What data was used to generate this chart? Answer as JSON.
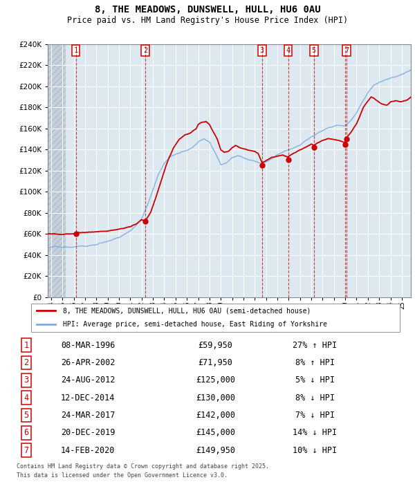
{
  "title_line1": "8, THE MEADOWS, DUNSWELL, HULL, HU6 0AU",
  "title_line2": "Price paid vs. HM Land Registry's House Price Index (HPI)",
  "ylim": [
    0,
    240000
  ],
  "xlim_start": 1993.7,
  "xlim_end": 2025.8,
  "plot_bg_color": "#dde8f0",
  "hatch_color": "#c5d0dc",
  "grid_color": "#ffffff",
  "sale_color": "#cc0000",
  "hpi_color": "#7aade0",
  "sale_label": "8, THE MEADOWS, DUNSWELL, HULL, HU6 0AU (semi-detached house)",
  "hpi_label": "HPI: Average price, semi-detached house, East Riding of Yorkshire",
  "show_in_chart": [
    1,
    2,
    3,
    4,
    5,
    7
  ],
  "transactions": [
    {
      "num": 1,
      "date": "08-MAR-1996",
      "year": 1996.19,
      "price": 59950,
      "pct": "27% ↑ HPI"
    },
    {
      "num": 2,
      "date": "26-APR-2002",
      "year": 2002.32,
      "price": 71950,
      "pct": "8% ↑ HPI"
    },
    {
      "num": 3,
      "date": "24-AUG-2012",
      "year": 2012.65,
      "price": 125000,
      "pct": "5% ↓ HPI"
    },
    {
      "num": 4,
      "date": "12-DEC-2014",
      "year": 2014.95,
      "price": 130000,
      "pct": "8% ↓ HPI"
    },
    {
      "num": 5,
      "date": "24-MAR-2017",
      "year": 2017.23,
      "price": 142000,
      "pct": "7% ↓ HPI"
    },
    {
      "num": 6,
      "date": "20-DEC-2019",
      "year": 2019.97,
      "price": 145000,
      "pct": "14% ↓ HPI"
    },
    {
      "num": 7,
      "date": "14-FEB-2020",
      "year": 2020.12,
      "price": 149950,
      "pct": "10% ↓ HPI"
    }
  ],
  "footer_line1": "Contains HM Land Registry data © Crown copyright and database right 2025.",
  "footer_line2": "This data is licensed under the Open Government Licence v3.0."
}
